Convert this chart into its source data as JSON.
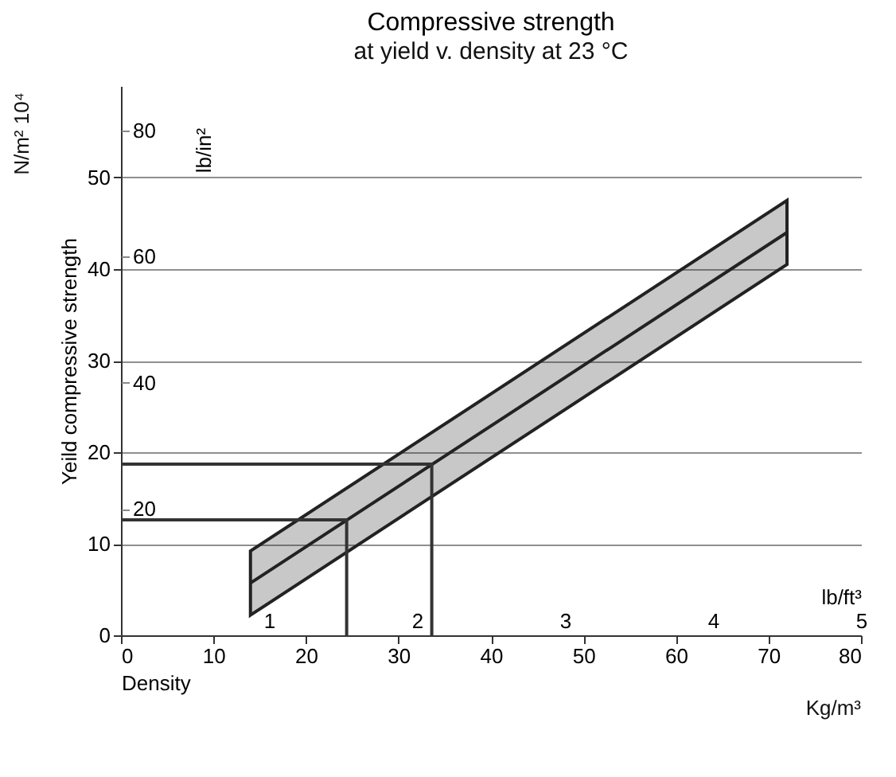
{
  "chart_data": {
    "type": "line",
    "title": "Compressive strength",
    "subtitle": "at yield v. density at 23 °C",
    "xlabel": "Density",
    "ylabel": "Yeild compressive strength",
    "y2label": "lb/in²",
    "x2label": "lb/ft³",
    "xlim": [
      0,
      80
    ],
    "xticks": [
      0,
      10,
      20,
      30,
      40,
      50,
      60,
      70,
      80
    ],
    "ylim": [
      0,
      60
    ],
    "yticks": [
      0,
      10,
      20,
      30,
      40,
      50
    ],
    "y2lim": [
      0,
      87.0
    ],
    "y2ticks": [
      20,
      40,
      60,
      80
    ],
    "x2lim": [
      0,
      5
    ],
    "x2ticks": [
      1,
      2,
      3,
      4,
      5
    ],
    "grid": "y",
    "marker": "none",
    "line_style": "solid",
    "series": [
      {
        "color": "#222222",
        "x": [
          14,
          72
        ],
        "values": [
          5.7,
          44.0
        ],
        "lower": [
          2.2,
          40.5
        ],
        "upper": [
          9.2,
          47.5
        ]
      },
      {
        "color": "#333333",
        "x": [
          0,
          24.4,
          24.4
        ],
        "values": [
          12.6,
          12.6,
          0
        ]
      },
      {
        "color": "#333333",
        "x": [
          0,
          33.6,
          33.6
        ],
        "values": [
          18.7,
          18.7,
          0
        ]
      }
    ],
    "annotations": [
      "N/m² 10⁴",
      "Kg/m³"
    ]
  }
}
